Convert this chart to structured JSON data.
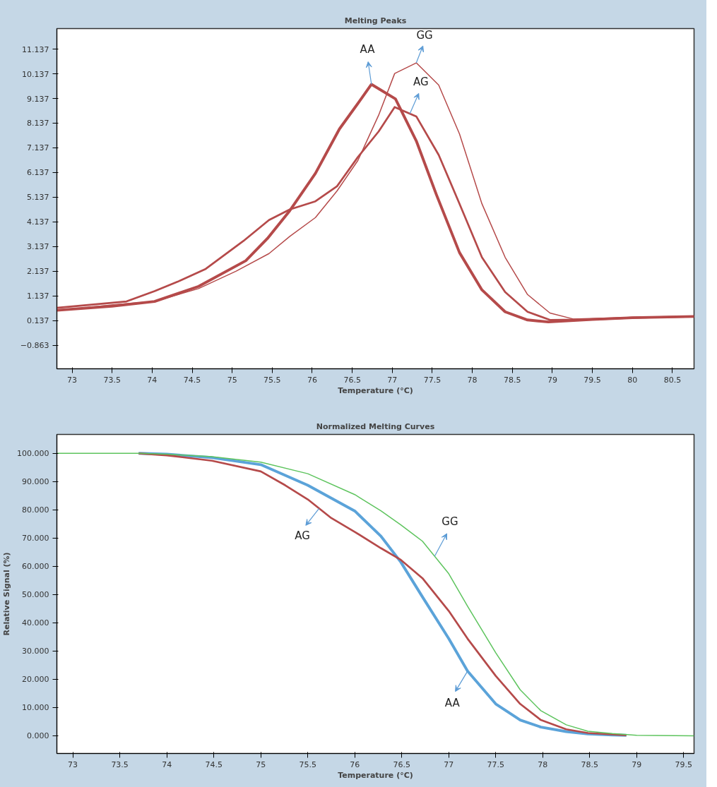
{
  "chart_data": [
    {
      "type": "line",
      "title": "Melting Peaks",
      "xlabel": "Temperature (°C)",
      "xlim": [
        72.81,
        80.77
      ],
      "ylim": [
        -1.82,
        11.97
      ],
      "xticks": [
        73,
        73.5,
        74,
        74.5,
        75,
        75.5,
        76,
        76.5,
        77,
        77.5,
        78,
        78.5,
        79,
        79.5,
        80,
        80.5
      ],
      "yticks": [
        -0.863,
        0.137,
        1.137,
        2.137,
        3.137,
        4.137,
        5.137,
        6.137,
        7.137,
        8.137,
        9.137,
        10.137,
        11.137
      ],
      "series": [
        {
          "color": "#b54a4a",
          "x": [
            72.81,
            73.5,
            74.03,
            74.58,
            75.17,
            75.44,
            75.72,
            76.04,
            76.34,
            76.6,
            76.74,
            77.04,
            77.3,
            77.55,
            77.84,
            78.12,
            78.41,
            78.69,
            78.95,
            79.5,
            80,
            80.77
          ],
          "values": [
            0.55,
            0.72,
            0.91,
            1.52,
            2.56,
            3.46,
            4.59,
            6.1,
            7.9,
            9.07,
            9.71,
            9.12,
            7.42,
            5.25,
            2.89,
            1.38,
            0.49,
            0.16,
            0.08,
            0.18,
            0.25,
            0.3
          ]
        },
        {
          "color": "#b54a4a",
          "x": [
            72.81,
            73.68,
            74.03,
            74.32,
            74.67,
            75.14,
            75.46,
            75.72,
            76.04,
            76.31,
            76.57,
            76.83,
            77.03,
            77.3,
            77.58,
            77.84,
            78.12,
            78.41,
            78.69,
            78.97,
            79.5,
            80,
            80.77
          ],
          "values": [
            0.65,
            0.91,
            1.33,
            1.71,
            2.23,
            3.36,
            4.21,
            4.64,
            4.97,
            5.58,
            6.76,
            7.8,
            8.79,
            8.41,
            6.85,
            4.87,
            2.7,
            1.29,
            0.49,
            0.16,
            0.18,
            0.25,
            0.3
          ]
        },
        {
          "color": "#b54a4a",
          "x": [
            72.81,
            73.5,
            74.03,
            74.58,
            75.05,
            75.46,
            75.72,
            76.04,
            76.31,
            76.57,
            76.83,
            77.03,
            77.3,
            77.58,
            77.84,
            78.12,
            78.41,
            78.69,
            78.97,
            79.26,
            80,
            80.77
          ],
          "values": [
            0.53,
            0.77,
            0.91,
            1.43,
            2.14,
            2.85,
            3.55,
            4.31,
            5.39,
            6.62,
            8.46,
            10.15,
            10.58,
            9.68,
            7.7,
            4.87,
            2.7,
            1.19,
            0.44,
            0.2,
            0.27,
            0.3
          ]
        }
      ],
      "annotations": [
        {
          "text": "AA",
          "x": 76.74,
          "y": 9.71
        },
        {
          "text": "GG",
          "x": 77.3,
          "y": 10.58
        },
        {
          "text": "AG",
          "x": 77.22,
          "y": 8.52
        }
      ]
    },
    {
      "type": "line",
      "title": "Normalized Melting Curves",
      "xlabel": "Temperature (°C)",
      "ylabel": "Relative Signal (%)",
      "xlim": [
        72.83,
        79.61
      ],
      "ylim": [
        -6.25,
        106.7
      ],
      "xticks": [
        73,
        73.5,
        74,
        74.5,
        75,
        75.5,
        76,
        76.5,
        77,
        77.5,
        78,
        78.5,
        79,
        79.5
      ],
      "yticks": [
        {
          "value": 0,
          "label": "0.000"
        },
        {
          "value": 10,
          "label": "10.000"
        },
        {
          "value": 20,
          "label": "20.000"
        },
        {
          "value": 30,
          "label": "30.000"
        },
        {
          "value": 40,
          "label": "40.000"
        },
        {
          "value": 50,
          "label": "50.000"
        },
        {
          "value": 60,
          "label": "60.000"
        },
        {
          "value": 70,
          "label": "70.000"
        },
        {
          "value": 80,
          "label": "80.000"
        },
        {
          "value": 90,
          "label": "90.000"
        },
        {
          "value": 100,
          "label": "100.000"
        }
      ],
      "series": [
        {
          "color": "#5ba3d9",
          "x": [
            73.7,
            74,
            74.48,
            75,
            75.5,
            76,
            76.28,
            76.49,
            76.72,
            77,
            77.2,
            77.5,
            77.76,
            77.98,
            78.25,
            78.48,
            78.74,
            78.89
          ],
          "values": [
            100,
            99.7,
            98.5,
            96,
            88.7,
            79.6,
            70.6,
            61.5,
            49.2,
            34.4,
            22.9,
            11.3,
            5.6,
            3.1,
            1.5,
            0.7,
            0.3,
            0.2
          ]
        },
        {
          "color": "#b54a4a",
          "x": [
            73.7,
            74,
            74.48,
            75,
            75.26,
            75.5,
            75.75,
            76,
            76.28,
            76.49,
            76.72,
            77,
            77.2,
            77.5,
            77.76,
            77.98,
            78.25,
            78.48,
            78.74,
            78.89
          ],
          "values": [
            100,
            99.3,
            97.4,
            93.6,
            88.7,
            83.7,
            77.1,
            72.2,
            66.4,
            62.3,
            55.8,
            44.2,
            34.4,
            21.2,
            11.3,
            5.6,
            2.3,
            1,
            0.5,
            0.2
          ]
        },
        {
          "color": "#5ec45e",
          "x": [
            72.83,
            73.7,
            74,
            74.48,
            75,
            75.5,
            76,
            76.28,
            76.49,
            76.72,
            77,
            77.2,
            77.5,
            77.76,
            77.98,
            78.25,
            78.48,
            78.74,
            79,
            79.61
          ],
          "values": [
            100,
            100,
            99.7,
            98.8,
            96.9,
            92.8,
            85.4,
            79.6,
            74.7,
            68.9,
            57.4,
            45.9,
            29.4,
            16.3,
            8.9,
            3.9,
            1.6,
            0.8,
            0.2,
            0
          ]
        }
      ],
      "annotations": [
        {
          "text": "AG",
          "x": 75.62,
          "y": 80.5
        },
        {
          "text": "GG",
          "x": 76.85,
          "y": 63.6
        },
        {
          "text": "AA",
          "x": 77.2,
          "y": 22.9
        }
      ]
    }
  ]
}
